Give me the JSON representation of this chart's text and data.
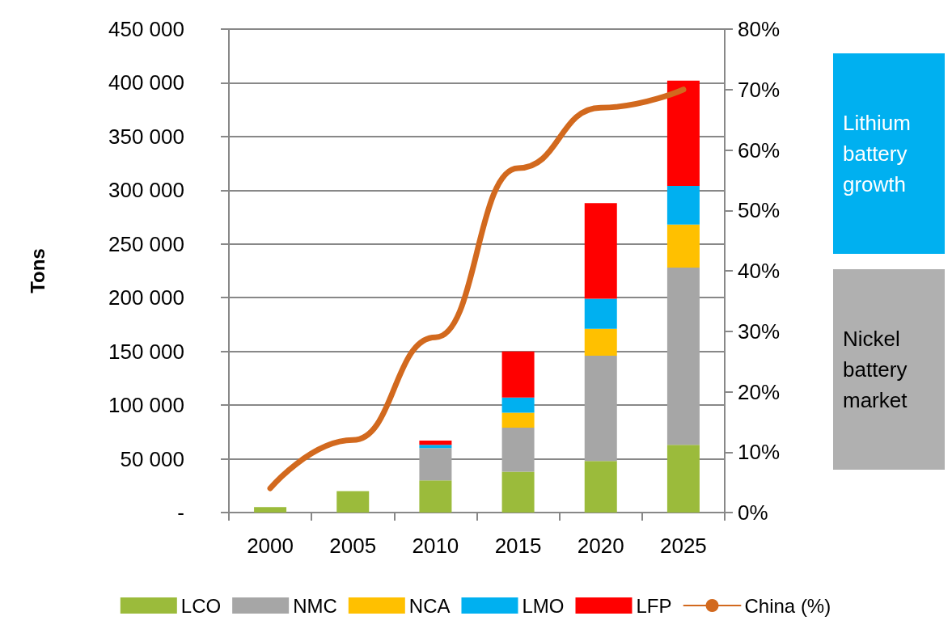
{
  "chart_data": {
    "type": "bar",
    "stacked": true,
    "ylabel": "Tons",
    "categories": [
      "2000",
      "2005",
      "2010",
      "2015",
      "2020",
      "2025"
    ],
    "series": [
      {
        "name": "LCO",
        "color": "#9bbb3b",
        "values": [
          5000,
          20000,
          30000,
          38000,
          48000,
          63000
        ]
      },
      {
        "name": "NMC",
        "color": "#a6a6a6",
        "values": [
          0,
          0,
          30000,
          41000,
          98000,
          165000
        ]
      },
      {
        "name": "NCA",
        "color": "#ffc000",
        "values": [
          0,
          0,
          0,
          14000,
          25000,
          40000
        ]
      },
      {
        "name": "LMO",
        "color": "#00b0f0",
        "values": [
          0,
          0,
          3000,
          14000,
          28000,
          36000
        ]
      },
      {
        "name": "LFP",
        "color": "#ff0000",
        "values": [
          0,
          0,
          4000,
          43000,
          89000,
          98000
        ]
      },
      {
        "name": "China (%)",
        "type": "line",
        "axis": "y2",
        "color": "#d2691e",
        "values": [
          4,
          12,
          29,
          57,
          67,
          70
        ]
      }
    ],
    "ylim": [
      0,
      450000
    ],
    "yticks": [
      {
        "value": 0,
        "label": "-"
      },
      {
        "value": 50000,
        "label": "50 000"
      },
      {
        "value": 100000,
        "label": "100 000"
      },
      {
        "value": 150000,
        "label": "150 000"
      },
      {
        "value": 200000,
        "label": "200 000"
      },
      {
        "value": 250000,
        "label": "250 000"
      },
      {
        "value": 300000,
        "label": "300 000"
      },
      {
        "value": 350000,
        "label": "350 000"
      },
      {
        "value": 400000,
        "label": "400 000"
      },
      {
        "value": 450000,
        "label": "450 000"
      }
    ],
    "y2lim": [
      0,
      80
    ],
    "y2ticks": [
      {
        "value": 0,
        "label": "0%"
      },
      {
        "value": 10,
        "label": "10%"
      },
      {
        "value": 20,
        "label": "20%"
      },
      {
        "value": 30,
        "label": "30%"
      },
      {
        "value": 40,
        "label": "40%"
      },
      {
        "value": 50,
        "label": "50%"
      },
      {
        "value": 60,
        "label": "60%"
      },
      {
        "value": 70,
        "label": "70%"
      },
      {
        "value": 80,
        "label": "80%"
      }
    ],
    "grid": "y",
    "legend": "bottom",
    "line_style": "solid",
    "marker": "none",
    "annotations": [
      "Lithium battery growth",
      "Nickel battery market"
    ]
  }
}
